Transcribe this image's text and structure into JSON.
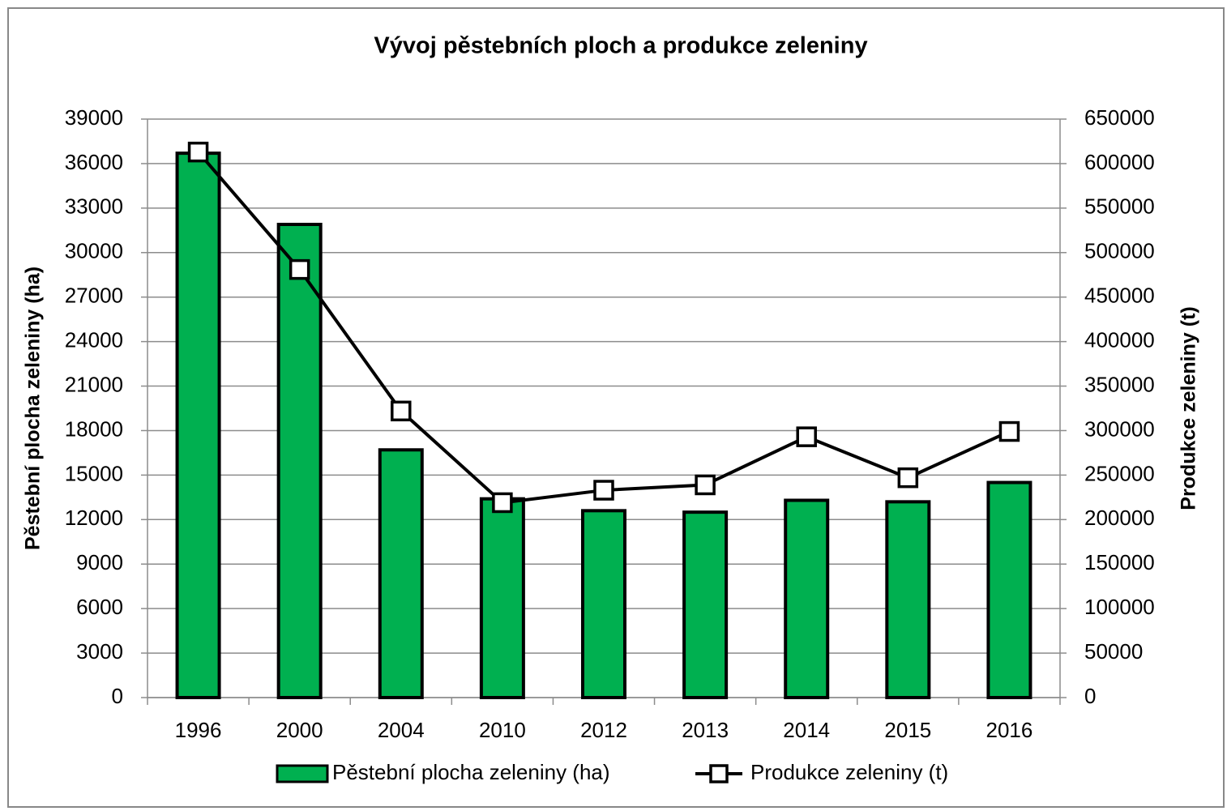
{
  "chart_data": {
    "type": "bar",
    "title": "Vývoj pěstebních ploch a produkce zeleniny",
    "ylabel": "Pěstební plocha zeleniny (ha)",
    "y2label": "Produkce zeleniny (t)",
    "categories": [
      "1996",
      "2000",
      "2004",
      "2010",
      "2012",
      "2013",
      "2014",
      "2015",
      "2016"
    ],
    "series": [
      {
        "name": "Pěstební plocha zeleniny (ha)",
        "type": "bar",
        "axis": "y",
        "color": "#00b050",
        "values": [
          36700,
          31900,
          16700,
          13400,
          12600,
          12500,
          13300,
          13200,
          14500
        ]
      },
      {
        "name": "Produkce zeleniny (t)",
        "type": "line",
        "axis": "y2",
        "color": "#000000",
        "values": [
          613000,
          481000,
          322000,
          219000,
          233000,
          239000,
          293000,
          247000,
          299000
        ]
      }
    ],
    "ylim": [
      0,
      39000
    ],
    "yticks": [
      0,
      3000,
      6000,
      9000,
      12000,
      15000,
      18000,
      21000,
      24000,
      27000,
      30000,
      33000,
      36000,
      39000
    ],
    "y2lim": [
      0,
      650000
    ],
    "y2ticks": [
      0,
      50000,
      100000,
      150000,
      200000,
      250000,
      300000,
      350000,
      400000,
      450000,
      500000,
      550000,
      600000,
      650000
    ],
    "grid": true,
    "legend": "bottom"
  }
}
